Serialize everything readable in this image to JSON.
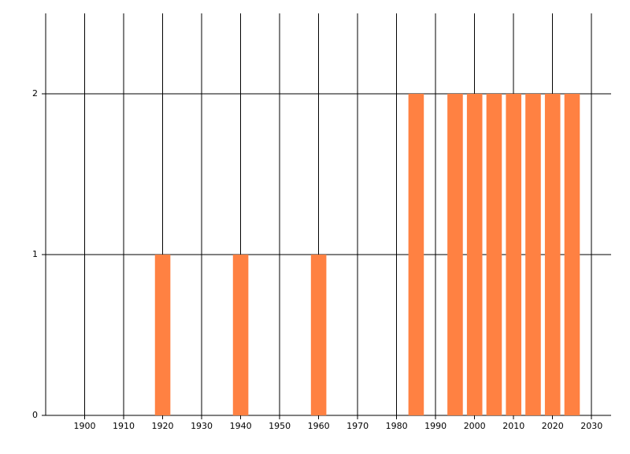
{
  "chart_data": {
    "type": "bar",
    "x": [
      1920,
      1940,
      1960,
      1985,
      1995,
      2000,
      2005,
      2010,
      2015,
      2020,
      2025
    ],
    "values": [
      1,
      1,
      1,
      2,
      2,
      2,
      2,
      2,
      2,
      2,
      2
    ],
    "color": "#ff8142",
    "xlim": [
      1890,
      2035
    ],
    "xticks": [
      1900,
      1910,
      1920,
      1930,
      1940,
      1950,
      1960,
      1970,
      1980,
      1990,
      2000,
      2010,
      2020,
      2030
    ],
    "ylim": [
      0,
      2.5
    ],
    "yticks": [
      0,
      1,
      2
    ],
    "grid": true
  }
}
